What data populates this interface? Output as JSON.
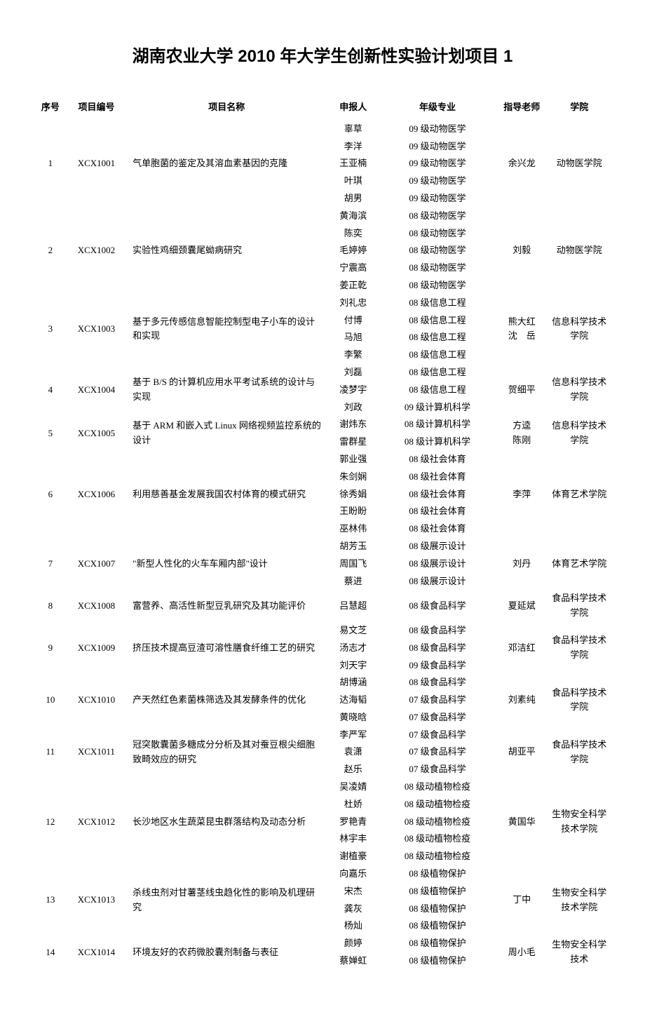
{
  "title": "湖南农业大学 2010 年大学生创新性实验计划项目 1",
  "headers": {
    "seq": "序号",
    "project_id": "项目编号",
    "project_name": "项目名称",
    "applicant": "申报人",
    "major": "年级专业",
    "teacher": "指导老师",
    "college": "学院"
  },
  "rows": [
    {
      "seq": "1",
      "id": "XCX1001",
      "name": "气单胞菌的鉴定及其溶血素基因的克隆",
      "applicants": [
        "辜草",
        "李洋",
        "王亚楠",
        "叶琪",
        "胡男"
      ],
      "majors": [
        "09 级动物医学",
        "09 级动物医学",
        "09 级动物医学",
        "09 级动物医学",
        "09 级动物医学"
      ],
      "teacher": "余兴龙",
      "college": "动物医学院"
    },
    {
      "seq": "2",
      "id": "XCX1002",
      "name": "实验性鸡细颈囊尾蚴病研究",
      "applicants": [
        "黄海滨",
        "陈奕",
        "毛婷婷",
        "宁震高",
        "姜正乾"
      ],
      "majors": [
        "08 级动物医学",
        "08 级动物医学",
        "08 级动物医学",
        "08 级动物医学",
        "08 级动物医学"
      ],
      "teacher": "刘毅",
      "college": "动物医学院"
    },
    {
      "seq": "3",
      "id": "XCX1003",
      "name": "基于多元传感信息智能控制型电子小车的设计和实现",
      "applicants": [
        "刘礼忠",
        "付博",
        "马旭",
        "李繁"
      ],
      "majors": [
        "08 级信息工程",
        "08 级信息工程",
        "08 级信息工程",
        "08 级信息工程"
      ],
      "teacher": "熊大红\n沈　岳",
      "college": "信息科学技术学院"
    },
    {
      "seq": "4",
      "id": "XCX1004",
      "name": "基于 B/S 的计算机应用水平考试系统的设计与实现",
      "applicants": [
        "刘磊",
        "凌梦宇",
        "刘政"
      ],
      "majors": [
        "08 级信息工程",
        "08 级信息工程",
        "09 级计算机科学"
      ],
      "teacher": "贺细平",
      "college": "信息科学技术学院"
    },
    {
      "seq": "5",
      "id": "XCX1005",
      "name": "基于 ARM 和嵌入式 Linux 网络视频监控系统的设计",
      "applicants": [
        "谢炜东",
        "雷群星"
      ],
      "majors": [
        "08 级计算机科学",
        "08 级计算机科学"
      ],
      "teacher": "方逵\n陈刚",
      "college": "信息科学技术学院"
    },
    {
      "seq": "6",
      "id": "XCX1006",
      "name": "利用慈善基金发展我国农村体育的模式研究",
      "applicants": [
        "郭业强",
        "朱剑娴",
        "徐秀娟",
        "王盼盼",
        "巫林伟"
      ],
      "majors": [
        "08 级社会体育",
        "08 级社会体育",
        "08 级社会体育",
        "08 级社会体育",
        "08 级社会体育"
      ],
      "teacher": "李萍",
      "college": "体育艺术学院"
    },
    {
      "seq": "7",
      "id": "XCX1007",
      "name": "\"新型人性化的火车车厢内部\"设计",
      "applicants": [
        "胡芳玉",
        "周国飞",
        "蔡进"
      ],
      "majors": [
        "08 级展示设计",
        "08 级展示设计",
        "08 级展示设计"
      ],
      "teacher": "刘丹",
      "college": "体育艺术学院"
    },
    {
      "seq": "8",
      "id": "XCX1008",
      "name": "富营养、高活性新型豆乳研究及其功能评价",
      "applicants": [
        "吕慧超"
      ],
      "majors": [
        "08 级食品科学"
      ],
      "teacher": "夏延斌",
      "college": "食品科学技术学院"
    },
    {
      "seq": "9",
      "id": "XCX1009",
      "name": "挤压技术提高豆渣可溶性膳食纤维工艺的研究",
      "applicants": [
        "易文芝",
        "汤志才",
        "刘天宇"
      ],
      "majors": [
        "08 级食品科学",
        "08 级食品科学",
        "09 级食品科学"
      ],
      "teacher": "邓洁红",
      "college": "食品科学技术学院"
    },
    {
      "seq": "10",
      "id": "XCX1010",
      "name": "产天然红色素菌株筛选及其发酵条件的优化",
      "applicants": [
        "胡博涵",
        "达海韬",
        "黄晓晗"
      ],
      "majors": [
        "08 级食品科学",
        "07 级食品科学",
        "07 级食品科学"
      ],
      "teacher": "刘素纯",
      "college": "食品科学技术学院"
    },
    {
      "seq": "11",
      "id": "XCX1011",
      "name": "冠突散囊菌多糖成分分析及其对蚕豆根尖细胞致畸效应的研究",
      "applicants": [
        "李严军",
        "袁潇",
        "赵乐"
      ],
      "majors": [
        "07 级食品科学",
        "07 级食品科学",
        "07 级食品科学"
      ],
      "teacher": "胡亚平",
      "college": "食品科学技术学院"
    },
    {
      "seq": "12",
      "id": "XCX1012",
      "name": "长沙地区水生蔬菜昆虫群落结构及动态分析",
      "applicants": [
        "吴凌婧",
        "杜娇",
        "罗艳青",
        "林宇丰",
        "谢植豪"
      ],
      "majors": [
        "08 级动植物检疫",
        "08 级动植物检疫",
        "08 级动植物检疫",
        "08 级动植物检疫",
        "08 级动植物检疫"
      ],
      "teacher": "黄国华",
      "college": "生物安全科学技术学院"
    },
    {
      "seq": "13",
      "id": "XCX1013",
      "name": "杀线虫剂对甘薯茎线虫趋化性的影响及机理研究",
      "applicants": [
        "向嘉乐",
        "宋杰",
        "龚灰",
        "杨灿"
      ],
      "majors": [
        "08 级植物保护",
        "08 级植物保护",
        "08 级植物保护",
        "08 级植物保护"
      ],
      "teacher": "丁中",
      "college": "生物安全科学技术学院"
    },
    {
      "seq": "14",
      "id": "XCX1014",
      "name": "环境友好的农药微胶囊剂制备与表征",
      "applicants": [
        "颜婷",
        "蔡婵虹"
      ],
      "majors": [
        "08 级植物保护",
        "08 级植物保护"
      ],
      "teacher": "周小毛",
      "college": "生物安全科学技术"
    }
  ]
}
